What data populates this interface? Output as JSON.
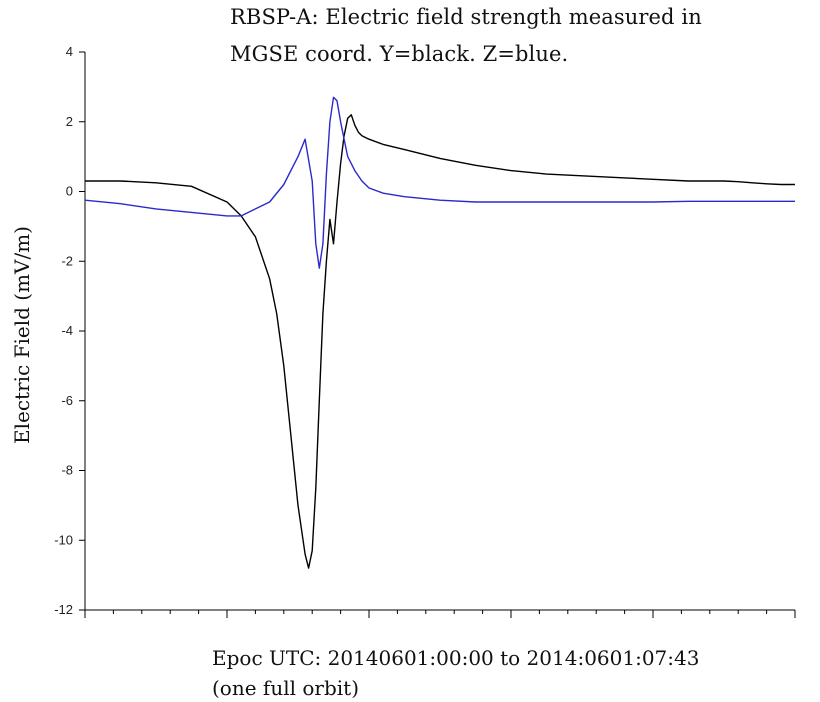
{
  "chart_data": {
    "type": "line",
    "title": "RBSP-A: Electric field strength measured in",
    "subtitle": "MGSE coord. Y=black. Z=blue.",
    "xlabel": "Epoc UTC: 20140601:00:00 to 2014:0601:07:43",
    "xlabel_note": "(one full orbit)",
    "ylabel": "Electric Field (mV/m)",
    "ylim": [
      -12,
      4
    ],
    "xlim": [
      0,
      1
    ],
    "yticks": [
      4,
      2,
      0,
      -2,
      -4,
      -6,
      -8,
      -10,
      -12
    ],
    "ytick_labels": [
      "4",
      "2",
      "0",
      "-2",
      "-4",
      "-6",
      "-8",
      "-10",
      "-12"
    ],
    "x_major_ticks": [
      0,
      0.2,
      0.4,
      0.6,
      0.8,
      1.0
    ],
    "x_minor_ticks_per_major": 5,
    "grid": false,
    "series": [
      {
        "color": "#000000",
        "x": [
          0,
          0.05,
          0.1,
          0.15,
          0.2,
          0.22,
          0.24,
          0.26,
          0.27,
          0.28,
          0.29,
          0.3,
          0.31,
          0.315,
          0.32,
          0.325,
          0.33,
          0.335,
          0.34,
          0.345,
          0.35,
          0.355,
          0.36,
          0.365,
          0.37,
          0.375,
          0.38,
          0.385,
          0.39,
          0.4,
          0.42,
          0.45,
          0.5,
          0.55,
          0.6,
          0.65,
          0.7,
          0.75,
          0.8,
          0.85,
          0.9,
          0.92,
          0.94,
          0.96,
          0.98,
          1.0
        ],
        "y": [
          0.3,
          0.3,
          0.25,
          0.15,
          -0.3,
          -0.7,
          -1.3,
          -2.5,
          -3.5,
          -5.0,
          -7.0,
          -9.0,
          -10.4,
          -10.8,
          -10.3,
          -8.5,
          -6.0,
          -3.5,
          -2.0,
          -0.8,
          -1.5,
          -0.3,
          0.8,
          1.6,
          2.1,
          2.2,
          1.9,
          1.7,
          1.6,
          1.5,
          1.35,
          1.2,
          0.95,
          0.75,
          0.6,
          0.5,
          0.45,
          0.4,
          0.35,
          0.3,
          0.3,
          0.28,
          0.25,
          0.22,
          0.2,
          0.2
        ]
      },
      {
        "color": "#2a2acc",
        "x": [
          0,
          0.05,
          0.1,
          0.15,
          0.2,
          0.22,
          0.24,
          0.26,
          0.28,
          0.3,
          0.31,
          0.32,
          0.325,
          0.33,
          0.335,
          0.34,
          0.345,
          0.35,
          0.355,
          0.36,
          0.365,
          0.37,
          0.38,
          0.39,
          0.4,
          0.42,
          0.45,
          0.5,
          0.55,
          0.6,
          0.65,
          0.7,
          0.75,
          0.8,
          0.85,
          0.9,
          0.95,
          1.0
        ],
        "y": [
          -0.25,
          -0.35,
          -0.5,
          -0.6,
          -0.7,
          -0.7,
          -0.5,
          -0.3,
          0.2,
          1.0,
          1.5,
          0.3,
          -1.5,
          -2.2,
          -1.5,
          0.5,
          2.0,
          2.7,
          2.6,
          2.0,
          1.5,
          1.0,
          0.6,
          0.3,
          0.1,
          -0.05,
          -0.15,
          -0.25,
          -0.3,
          -0.3,
          -0.3,
          -0.3,
          -0.3,
          -0.3,
          -0.28,
          -0.28,
          -0.28,
          -0.28
        ]
      }
    ]
  }
}
